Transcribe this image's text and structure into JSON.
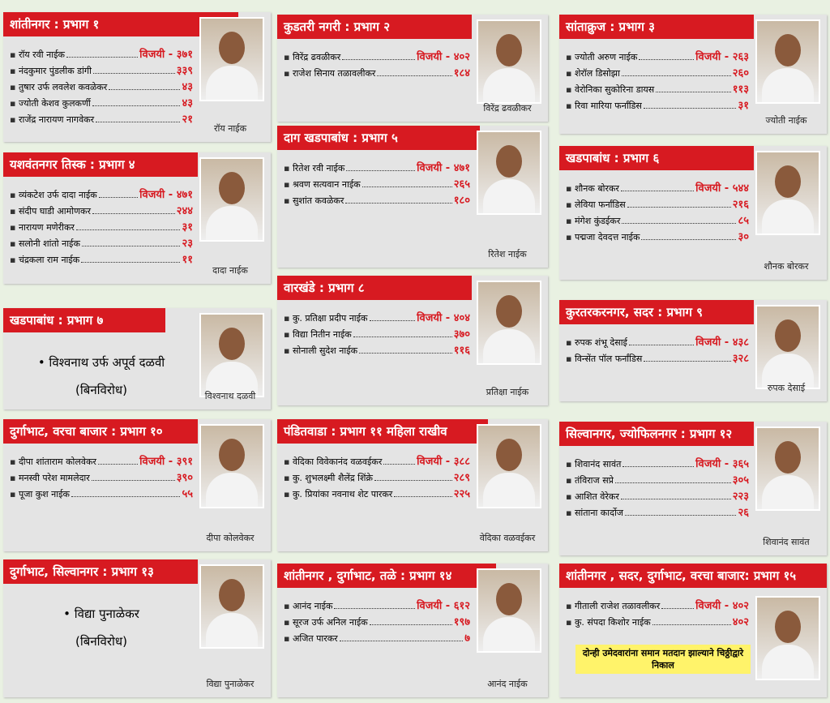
{
  "boxes": [
    {
      "title": "शांतीनगर : प्रभाग १",
      "candidates": [
        {
          "name": "रॉय रवी नाईक",
          "votes": "विजयी - ३७१"
        },
        {
          "name": "नंदकुमार पुंडलीक डांगी",
          "votes": "३३९"
        },
        {
          "name": "तुषार उर्फ लवलेश कवळेकर",
          "votes": "४३"
        },
        {
          "name": "ज्योती केशव कुलकर्णी",
          "votes": "४३"
        },
        {
          "name": "राजेंद्र नारायण नागवेकर",
          "votes": "२१"
        }
      ],
      "photo_caption": "रॉय नाईक"
    },
    {
      "title": "कुडतरी नगरी : प्रभाग २",
      "candidates": [
        {
          "name": "विरेंद्र ढवळीकर",
          "votes": "विजयी - ४०२"
        },
        {
          "name": "राजेश सिनाय तळावलीकर",
          "votes": "१८४"
        }
      ],
      "photo_caption": "विरेंद्र ढवळीकर"
    },
    {
      "title": "सांताक्रुज : प्रभाग ३",
      "candidates": [
        {
          "name": "ज्योती अरुण नाईक",
          "votes": "विजयी - २६३"
        },
        {
          "name": "शेरॉल डिसोझा",
          "votes": "२६०"
        },
        {
          "name": "वेरोनिका सुकोरिना डायस",
          "votes": "११३"
        },
        {
          "name": "रिवा मारिया फर्नांडिस",
          "votes": "३१"
        }
      ],
      "photo_caption": "ज्योती नाईक"
    },
    {
      "title": "यशवंतनगर तिस्क : प्रभाग ४",
      "candidates": [
        {
          "name": "व्यंकटेश उर्फ दादा नाईक",
          "votes": "विजयी - ४७१"
        },
        {
          "name": "संदीप घाडी आमोणकर",
          "votes": "२४४"
        },
        {
          "name": "नारायण मणेरीकर",
          "votes": "३१"
        },
        {
          "name": "सलोनी शांतो नाईक",
          "votes": "२३"
        },
        {
          "name": "चंद्रकला राम नाईक",
          "votes": "११"
        }
      ],
      "photo_caption": "दादा नाईक"
    },
    {
      "title": "दाग खडपाबांध : प्रभाग ५",
      "candidates": [
        {
          "name": "रितेश रवी नाईक",
          "votes": "विजयी - ४७१"
        },
        {
          "name": "श्रवण सत्यवान नाईक",
          "votes": "२६५"
        },
        {
          "name": "सुशांत कवळेकर",
          "votes": "१८०"
        }
      ],
      "photo_caption": "रितेश नाईक"
    },
    {
      "title": "खडपाबांध : प्रभाग ६",
      "candidates": [
        {
          "name": "शौनक बोरकर",
          "votes": "विजयी - ५४४"
        },
        {
          "name": "लेविया फर्नांडिस",
          "votes": "२१६"
        },
        {
          "name": "मंगेश कुंडईकर",
          "votes": "८५"
        },
        {
          "name": "पद्मजा देवदत्त नाईक",
          "votes": "३०"
        }
      ],
      "photo_caption": "शौनक बोरकर"
    },
    {
      "title": "खडपाबांध : प्रभाग ७",
      "candidates": [
        {
          "name": "विश्वनाथ उर्फ अपूर्व दळवी",
          "result": "(बिनविरोध)"
        }
      ],
      "photo_caption": "विश्वनाथ दळवी"
    },
    {
      "title": "वारखंडे : प्रभाग ८",
      "candidates": [
        {
          "name": "कु. प्रतिक्षा प्रदीप नाईक",
          "votes": "विजयी - ४०४"
        },
        {
          "name": "विद्या नितीन नाईक",
          "votes": "३७०"
        },
        {
          "name": "सोनाली सुदेश नाईक",
          "votes": "११६"
        }
      ],
      "photo_caption": "प्रतिक्षा नाईक"
    },
    {
      "title": "कुरतरकरनगर, सदर : प्रभाग ९",
      "candidates": [
        {
          "name": "रुपक शंभू देसाई",
          "votes": "विजयी - ४३८"
        },
        {
          "name": "विन्सेंत पॉल फर्नांडिस",
          "votes": "३२८"
        }
      ],
      "photo_caption": "रुपक देसाई"
    },
    {
      "title": "दुर्गाभाट, वरचा बाजार : प्रभाग १०",
      "candidates": [
        {
          "name": "दीपा शांताराम कोलवेकर",
          "votes": "विजयी - ३९१"
        },
        {
          "name": "मनस्वी परेश मामलेदार",
          "votes": "३९०"
        },
        {
          "name": "पूजा कुश नाईक",
          "votes": "५५"
        }
      ],
      "photo_caption": "दीपा कोलवेकर"
    },
    {
      "title": "पंडितवाडा : प्रभाग ११ महिला राखीव",
      "candidates": [
        {
          "name": "वेदिका विवेकानंद वळवईकर",
          "votes": "विजयी - ३८८"
        },
        {
          "name": "कु. शुभलक्ष्मी शैलेंद्र शिंक्रे",
          "votes": "२८९"
        },
        {
          "name": "कु. प्रियांका नवनाथ शेट पारकर",
          "votes": "२२५"
        }
      ],
      "photo_caption": "वेदिका वळवईकर"
    },
    {
      "title": "सिल्वानगर, ज्योफिलनगर : प्रभाग १२",
      "candidates": [
        {
          "name": "शिवानंद सावंत",
          "votes": "विजयी - ३६५"
        },
        {
          "name": "तंविराज सप्रे",
          "votes": "३०५"
        },
        {
          "name": "आशित वेरेकर",
          "votes": "२२३"
        },
        {
          "name": "सांताना कार्दोज",
          "votes": "२६"
        }
      ],
      "photo_caption": "शिवानंद सावंत"
    },
    {
      "title": "दुर्गाभाट, सिल्वानगर : प्रभाग १३",
      "candidates": [
        {
          "name": "विद्या पुनाळेकर",
          "result": "(बिनविरोध)"
        }
      ],
      "photo_caption": "विद्या पुनाळेकर"
    },
    {
      "title": "शांतीनगर , दुर्गाभाट, तळे : प्रभाग १४",
      "candidates": [
        {
          "name": "आनंद नाईक",
          "votes": "विजयी - ६१२"
        },
        {
          "name": "सूरज उर्फ अनिल नाईक",
          "votes": "१९७"
        },
        {
          "name": "अजित पारकर",
          "votes": "७"
        }
      ],
      "photo_caption": "आनंद नाईक"
    },
    {
      "title": "शांतीनगर , सदर, दुर्गाभाट, वरचा बाजार: प्रभाग १५",
      "candidates": [
        {
          "name": "गीताली राजेश तळावलीकर",
          "votes": "विजयी - ४०२"
        },
        {
          "name": "कु. संपदा किशोर नाईक",
          "votes": "४०२"
        }
      ],
      "note": "दोन्ही उमेदवारांना समान मतदान झाल्याने चिठ्ठीद्वारे निकाल"
    }
  ]
}
